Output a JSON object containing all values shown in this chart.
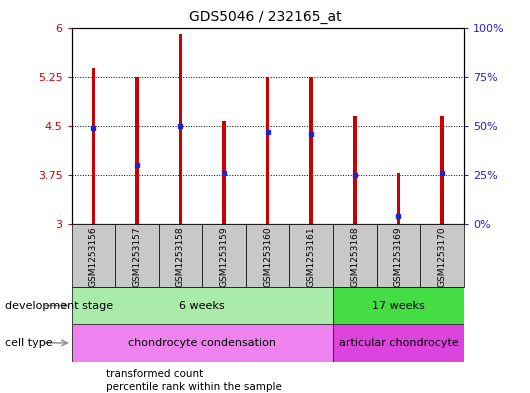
{
  "title": "GDS5046 / 232165_at",
  "samples": [
    "GSM1253156",
    "GSM1253157",
    "GSM1253158",
    "GSM1253159",
    "GSM1253160",
    "GSM1253161",
    "GSM1253168",
    "GSM1253169",
    "GSM1253170"
  ],
  "bar_tops": [
    5.38,
    5.25,
    5.9,
    4.57,
    5.25,
    5.25,
    4.65,
    3.78,
    4.65
  ],
  "bar_base": 3.0,
  "blue_markers": [
    4.47,
    3.9,
    4.5,
    3.78,
    4.4,
    4.38,
    3.75,
    3.12,
    3.78
  ],
  "ylim": [
    3.0,
    6.0
  ],
  "yticks_left": [
    3,
    3.75,
    4.5,
    5.25,
    6
  ],
  "ytick_left_labels": [
    "3",
    "3.75",
    "4.5",
    "5.25",
    "6"
  ],
  "yticks_right_pos": [
    3.0,
    3.75,
    4.5,
    5.25,
    6.0
  ],
  "ytick_right_labels": [
    "0%",
    "25%",
    "50%",
    "75%",
    "100%"
  ],
  "bar_color": "#cc0000",
  "blue_color": "#2222cc",
  "bg_plot": "#ffffff",
  "bg_sample": "#c8c8c8",
  "groups": [
    {
      "label": "6 weeks",
      "start": 0,
      "end": 6,
      "color": "#aaeaaa"
    },
    {
      "label": "17 weeks",
      "start": 6,
      "end": 9,
      "color": "#44dd44"
    }
  ],
  "cell_types": [
    {
      "label": "chondrocyte condensation",
      "start": 0,
      "end": 6,
      "color": "#ee82ee"
    },
    {
      "label": "articular chondrocyte",
      "start": 6,
      "end": 9,
      "color": "#dd44dd"
    }
  ],
  "dev_stage_label": "development stage",
  "cell_type_label": "cell type",
  "legend_red_label": "transformed count",
  "legend_blue_label": "percentile rank within the sample",
  "left_axis_color": "#cc0000",
  "right_axis_color": "#2222cc",
  "bar_width": 0.08
}
